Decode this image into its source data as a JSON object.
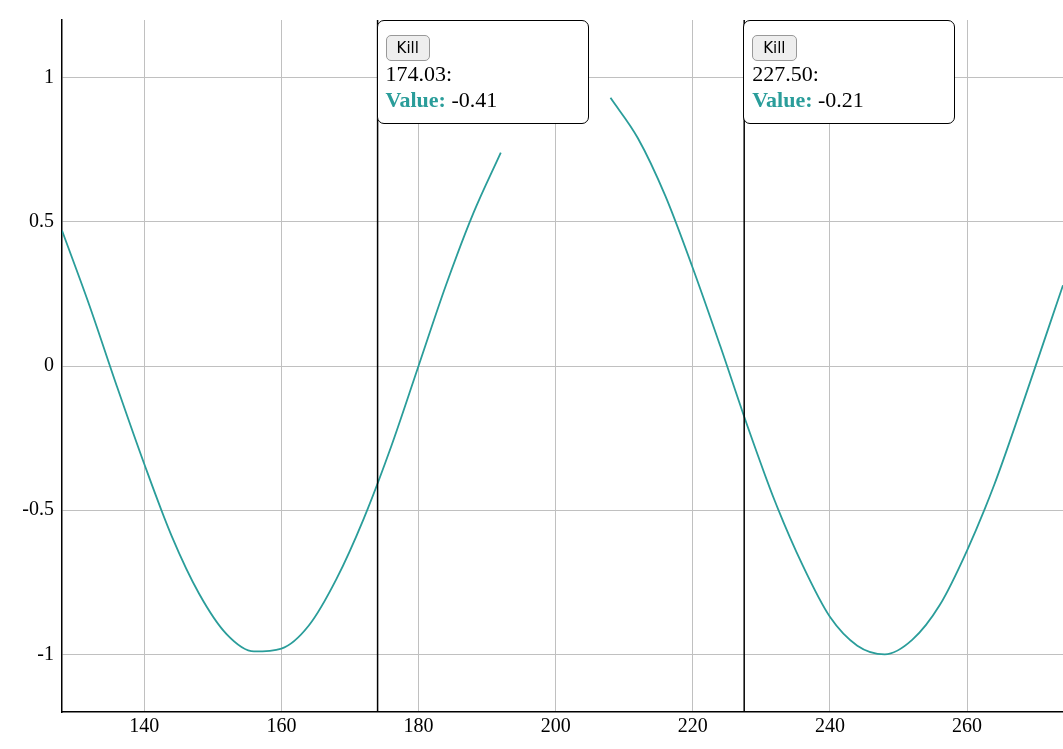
{
  "chart_data": {
    "type": "line",
    "x": [
      128,
      132,
      136,
      140,
      144,
      148,
      152,
      156,
      160,
      164,
      168,
      172,
      176,
      180,
      184,
      188,
      192,
      196,
      200,
      204,
      208,
      212,
      216,
      220,
      224,
      228,
      232,
      236,
      240,
      244,
      248,
      252,
      256,
      260,
      264,
      268,
      272,
      274
    ],
    "values": [
      0.47,
      0.21,
      -0.07,
      -0.34,
      -0.59,
      -0.79,
      -0.93,
      -0.99,
      -0.98,
      -0.9,
      -0.74,
      -0.53,
      -0.28,
      0,
      0.28,
      0.53,
      0.74,
      null,
      null,
      null,
      0.93,
      0.79,
      0.59,
      0.34,
      0.07,
      -0.21,
      -0.47,
      -0.69,
      -0.87,
      -0.97,
      -1,
      -0.95,
      -0.83,
      -0.64,
      -0.41,
      -0.14,
      0.14,
      0.28
    ],
    "color": "#2a9d9a",
    "xlim": [
      128,
      274
    ],
    "xticks": [
      140,
      160,
      180,
      200,
      220,
      240,
      260
    ],
    "ylim": [
      -1.2,
      1.2
    ],
    "yticks": [
      -1,
      -0.5,
      0,
      0.5,
      1
    ],
    "grid": true,
    "marker": "none",
    "line_style": "solid",
    "legend": false,
    "ref_lines": [
      {
        "axis": "x",
        "value": 174.03,
        "label": "174.03:",
        "color": "#000000"
      },
      {
        "axis": "x",
        "value": 227.5,
        "label": "227.50:",
        "color": "#000000"
      }
    ],
    "annotations": [
      "Kill",
      "Value: -0.41",
      "Kill",
      "Value: -0.21"
    ]
  }
}
